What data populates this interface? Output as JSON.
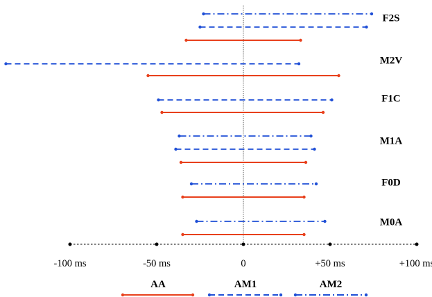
{
  "chart_data": {
    "type": "range",
    "unit": "ms",
    "xlim": [
      -100,
      100
    ],
    "x_ticks": [
      {
        "value": -100,
        "label": "-100 ms"
      },
      {
        "value": -50,
        "label": "-50 ms"
      },
      {
        "value": 0,
        "label": "0"
      },
      {
        "value": 50,
        "label": "+50 ms"
      },
      {
        "value": 100,
        "label": "+100 ms"
      }
    ],
    "legend": [
      {
        "key": "AA",
        "label": "AA",
        "color": "#e8401c",
        "style": "solid"
      },
      {
        "key": "AM1",
        "label": "AM1",
        "color": "#1f4fd6",
        "style": "dashed"
      },
      {
        "key": "AM2",
        "label": "AM2",
        "color": "#1f4fd6",
        "style": "dashdot"
      }
    ],
    "groups": [
      {
        "label": "F2S",
        "ranges": [
          {
            "series": "AM2",
            "start": -23,
            "end": 74
          },
          {
            "series": "AM1",
            "start": -25,
            "end": 71
          },
          {
            "series": "AA",
            "start": -33,
            "end": 33
          }
        ]
      },
      {
        "label": "M2V",
        "ranges": [
          {
            "series": "AM1",
            "start": -137,
            "end": 32
          },
          {
            "series": "AA",
            "start": -55,
            "end": 55
          }
        ]
      },
      {
        "label": "F1C",
        "ranges": [
          {
            "series": "AM1",
            "start": -49,
            "end": 51
          },
          {
            "series": "AA",
            "start": -47,
            "end": 46
          }
        ]
      },
      {
        "label": "M1A",
        "ranges": [
          {
            "series": "AM2",
            "start": -37,
            "end": 39
          },
          {
            "series": "AM1",
            "start": -39,
            "end": 41
          },
          {
            "series": "AA",
            "start": -36,
            "end": 36
          }
        ]
      },
      {
        "label": "F0D",
        "ranges": [
          {
            "series": "AM2",
            "start": -30,
            "end": 42
          },
          {
            "series": "AA",
            "start": -35,
            "end": 35
          }
        ]
      },
      {
        "label": "M0A",
        "ranges": [
          {
            "series": "AM2",
            "start": -27,
            "end": 47
          },
          {
            "series": "AA",
            "start": -35,
            "end": 35
          }
        ]
      }
    ]
  }
}
